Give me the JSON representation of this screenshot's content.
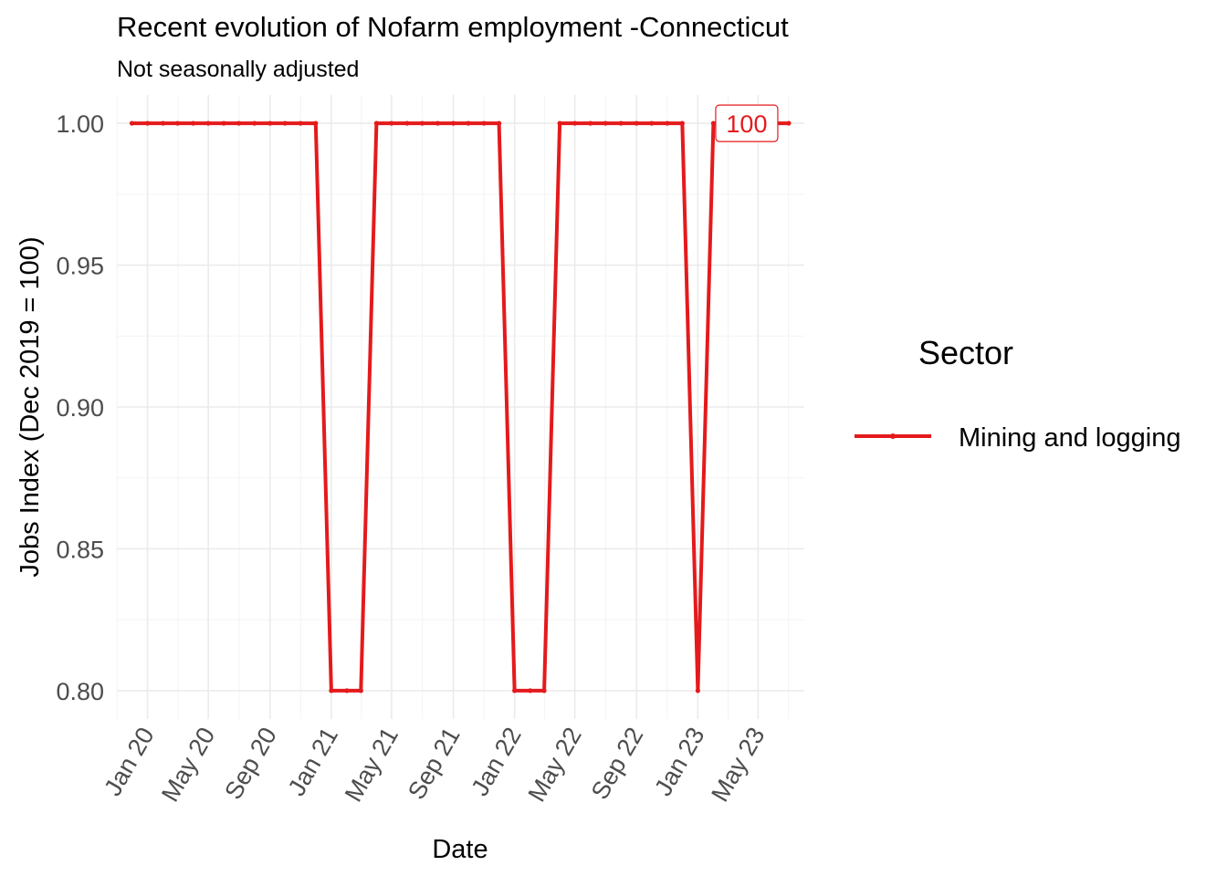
{
  "colors": {
    "series": "#e41a1c"
  },
  "chart_data": {
    "type": "line",
    "title": "Recent evolution of Nofarm employment -Connecticut",
    "subtitle": "Not seasonally adjusted",
    "xlabel": "Date",
    "ylabel": "Jobs Index (Dec 2019 = 100)",
    "ylim": [
      0.79,
      1.01
    ],
    "xlim": [
      "2019-11-01",
      "2023-08-01"
    ],
    "yticks": [
      0.8,
      0.85,
      0.9,
      0.95,
      1.0
    ],
    "ytick_labels": [
      "0.80",
      "0.85",
      "0.90",
      "0.95",
      "1.00"
    ],
    "xticks": [
      "2020-01-01",
      "2020-05-01",
      "2020-09-01",
      "2021-01-01",
      "2021-05-01",
      "2021-09-01",
      "2022-01-01",
      "2022-05-01",
      "2022-09-01",
      "2023-01-01",
      "2023-05-01"
    ],
    "xtick_labels": [
      "Jan 20",
      "May 20",
      "Sep 20",
      "Jan 21",
      "May 21",
      "Sep 21",
      "Jan 22",
      "May 22",
      "Sep 22",
      "Jan 23",
      "May 23"
    ],
    "grid": true,
    "legend": {
      "title": "Sector",
      "position": "right"
    },
    "end_label": "100",
    "series": [
      {
        "name": "Mining and logging",
        "x": [
          "2019-12-01",
          "2020-01-01",
          "2020-02-01",
          "2020-03-01",
          "2020-04-01",
          "2020-05-01",
          "2020-06-01",
          "2020-07-01",
          "2020-08-01",
          "2020-09-01",
          "2020-10-01",
          "2020-11-01",
          "2020-12-01",
          "2021-01-01",
          "2021-02-01",
          "2021-03-01",
          "2021-04-01",
          "2021-05-01",
          "2021-06-01",
          "2021-07-01",
          "2021-08-01",
          "2021-09-01",
          "2021-10-01",
          "2021-11-01",
          "2021-12-01",
          "2022-01-01",
          "2022-02-01",
          "2022-03-01",
          "2022-04-01",
          "2022-05-01",
          "2022-06-01",
          "2022-07-01",
          "2022-08-01",
          "2022-09-01",
          "2022-10-01",
          "2022-11-01",
          "2022-12-01",
          "2023-01-01",
          "2023-02-01",
          "2023-03-01",
          "2023-04-01",
          "2023-05-01",
          "2023-06-01",
          "2023-07-01"
        ],
        "values": [
          1.0,
          1.0,
          1.0,
          1.0,
          1.0,
          1.0,
          1.0,
          1.0,
          1.0,
          1.0,
          1.0,
          1.0,
          1.0,
          0.8,
          0.8,
          0.8,
          1.0,
          1.0,
          1.0,
          1.0,
          1.0,
          1.0,
          1.0,
          1.0,
          1.0,
          0.8,
          0.8,
          0.8,
          1.0,
          1.0,
          1.0,
          1.0,
          1.0,
          1.0,
          1.0,
          1.0,
          1.0,
          0.8,
          1.0,
          1.0,
          1.0,
          1.0,
          1.0,
          1.0
        ]
      }
    ]
  }
}
